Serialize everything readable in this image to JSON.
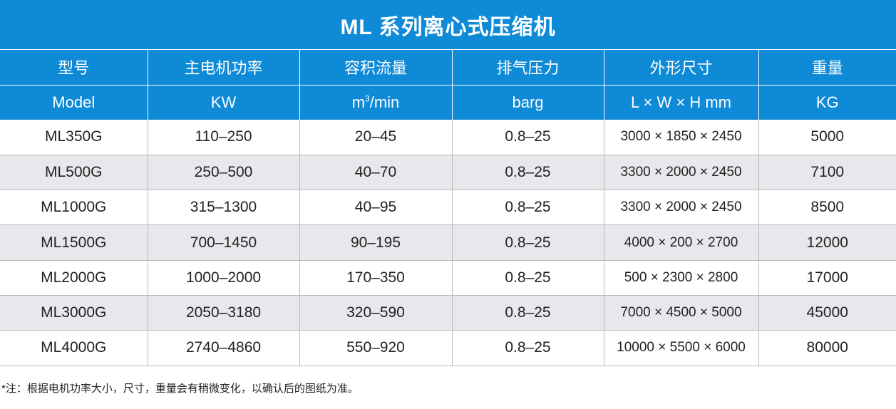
{
  "title": "ML 系列离心式压缩机",
  "header_cn": [
    "型号",
    "主电机功率",
    "容积流量",
    "排气压力",
    "外形尺寸",
    "重量"
  ],
  "header_en": {
    "model": "Model",
    "power": "KW",
    "flow_base": "m",
    "flow_sup": "3",
    "flow_unit": "/min",
    "pressure": "barg",
    "dims": "L × W × H mm",
    "weight": "KG"
  },
  "rows": [
    {
      "model": "ML350G",
      "power": "110–250",
      "flow": "20–45",
      "pressure": "0.8–25",
      "dims": "3000 × 1850 × 2450",
      "weight": "5000"
    },
    {
      "model": "ML500G",
      "power": "250–500",
      "flow": "40–70",
      "pressure": "0.8–25",
      "dims": "3300 × 2000 × 2450",
      "weight": "7100"
    },
    {
      "model": "ML1000G",
      "power": "315–1300",
      "flow": "40–95",
      "pressure": "0.8–25",
      "dims": "3300 × 2000 × 2450",
      "weight": "8500"
    },
    {
      "model": "ML1500G",
      "power": "700–1450",
      "flow": "90–195",
      "pressure": "0.8–25",
      "dims": "4000 × 200 × 2700",
      "weight": "12000"
    },
    {
      "model": "ML2000G",
      "power": "1000–2000",
      "flow": "170–350",
      "pressure": "0.8–25",
      "dims": "500 × 2300 × 2800",
      "weight": "17000"
    },
    {
      "model": "ML3000G",
      "power": "2050–3180",
      "flow": "320–590",
      "pressure": "0.8–25",
      "dims": "7000 × 4500 × 5000",
      "weight": "45000"
    },
    {
      "model": "ML4000G",
      "power": "2740–4860",
      "flow": "550–920",
      "pressure": "0.8–25",
      "dims": "10000 × 5500 × 6000",
      "weight": "80000"
    }
  ],
  "note": "*注：根据电机功率大小，尺寸，重量会有稍微变化，以确认后的图纸为准。",
  "colors": {
    "header_blue": "#0f8ad7",
    "alt_row": "#e6e8eb",
    "grid_line": "#b9b9b9"
  }
}
